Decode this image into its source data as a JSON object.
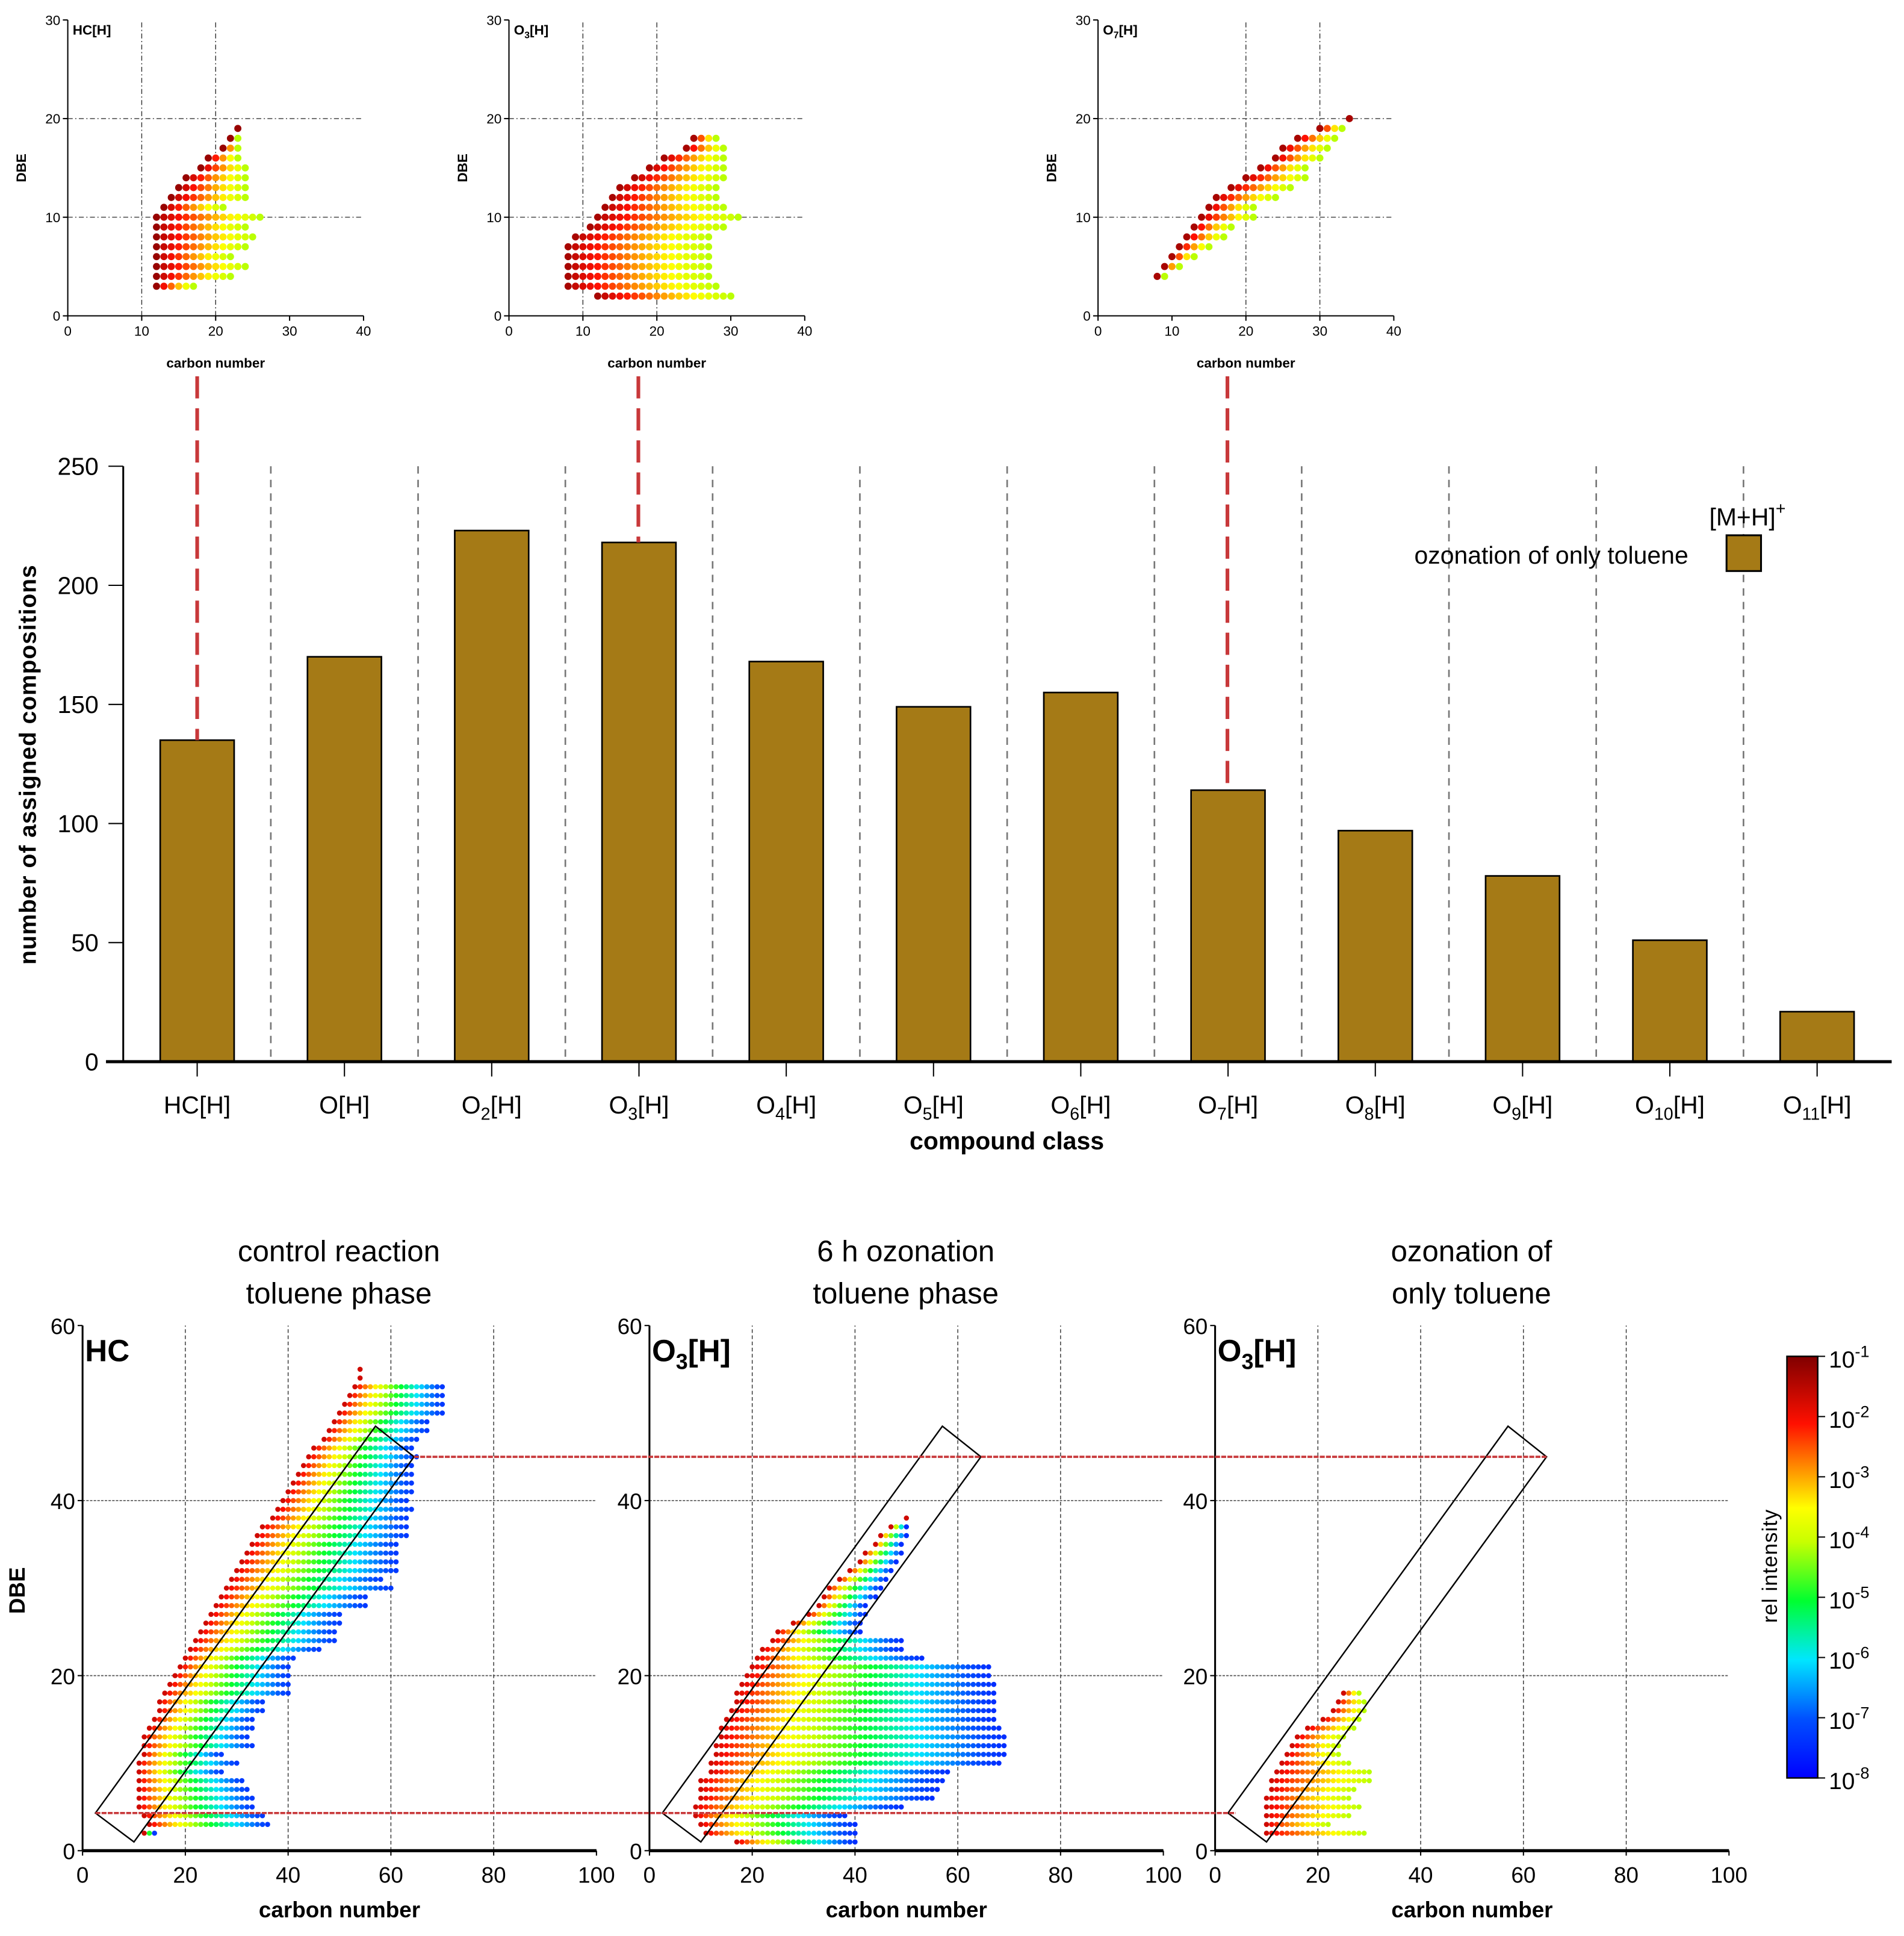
{
  "colors": {
    "bar": "#a57a16",
    "link": "#c8383a",
    "sep": "#777777"
  },
  "chart_data": [
    {
      "type": "scatter",
      "panel": "top-1",
      "title": "HC[H]",
      "xlabel": "carbon number",
      "ylabel": "DBE",
      "xlim": [
        0,
        40
      ],
      "ylim": [
        0,
        30
      ],
      "xticks": [
        0,
        10,
        20,
        30,
        40
      ],
      "yticks": [
        0,
        10,
        20,
        30
      ],
      "grid_x": [
        10,
        20
      ],
      "grid_y": [
        10,
        20
      ],
      "color_range": [
        0.97,
        0.55
      ],
      "rows": [
        [
          3,
          12,
          17
        ],
        [
          4,
          12,
          22
        ],
        [
          5,
          12,
          24
        ],
        [
          6,
          12,
          22
        ],
        [
          7,
          12,
          24
        ],
        [
          8,
          12,
          25
        ],
        [
          9,
          12,
          24
        ],
        [
          10,
          12,
          26
        ],
        [
          11,
          13,
          21
        ],
        [
          12,
          14,
          24
        ],
        [
          13,
          15,
          24
        ],
        [
          14,
          16,
          24
        ],
        [
          15,
          18,
          24
        ],
        [
          16,
          19,
          23
        ],
        [
          17,
          21,
          23
        ],
        [
          18,
          22,
          23
        ],
        [
          19,
          23,
          23
        ]
      ]
    },
    {
      "type": "scatter",
      "panel": "top-2",
      "title": "O3[H]",
      "xlabel": "carbon number",
      "ylabel": "DBE",
      "xlim": [
        0,
        40
      ],
      "ylim": [
        0,
        30
      ],
      "xticks": [
        0,
        10,
        20,
        30,
        40
      ],
      "yticks": [
        0,
        10,
        20,
        30
      ],
      "grid_x": [
        10,
        20
      ],
      "grid_y": [
        10,
        20
      ],
      "color_range": [
        0.95,
        0.55
      ],
      "rows": [
        [
          2,
          12,
          30
        ],
        [
          3,
          8,
          28
        ],
        [
          4,
          8,
          27
        ],
        [
          5,
          8,
          27
        ],
        [
          6,
          8,
          27
        ],
        [
          7,
          8,
          27
        ],
        [
          8,
          9,
          27
        ],
        [
          9,
          11,
          29
        ],
        [
          10,
          12,
          31
        ],
        [
          11,
          13,
          29
        ],
        [
          12,
          14,
          28
        ],
        [
          13,
          15,
          28
        ],
        [
          14,
          17,
          29
        ],
        [
          15,
          19,
          29
        ],
        [
          16,
          21,
          29
        ],
        [
          17,
          24,
          29
        ],
        [
          18,
          25,
          28
        ]
      ]
    },
    {
      "type": "scatter",
      "panel": "top-3",
      "title": "O7[H]",
      "xlabel": "carbon number",
      "ylabel": "DBE",
      "xlim": [
        0,
        40
      ],
      "ylim": [
        0,
        30
      ],
      "xticks": [
        0,
        10,
        20,
        30,
        40
      ],
      "yticks": [
        0,
        10,
        20,
        30
      ],
      "grid_x": [
        20,
        30
      ],
      "grid_y": [
        10,
        20
      ],
      "color_range": [
        0.95,
        0.55
      ],
      "rows": [
        [
          4,
          8,
          9
        ],
        [
          5,
          9,
          11
        ],
        [
          6,
          10,
          13
        ],
        [
          7,
          11,
          15
        ],
        [
          8,
          12,
          17
        ],
        [
          9,
          13,
          18
        ],
        [
          10,
          14,
          21
        ],
        [
          11,
          15,
          21
        ],
        [
          12,
          16,
          24
        ],
        [
          13,
          18,
          26
        ],
        [
          14,
          20,
          28
        ],
        [
          15,
          22,
          28
        ],
        [
          16,
          24,
          30
        ],
        [
          17,
          25,
          31
        ],
        [
          18,
          27,
          32
        ],
        [
          19,
          30,
          33
        ],
        [
          20,
          34,
          34
        ]
      ]
    },
    {
      "type": "bar",
      "categories": [
        "HC[H]",
        "O[H]",
        "O2[H]",
        "O3[H]",
        "O4[H]",
        "O5[H]",
        "O6[H]",
        "O7[H]",
        "O8[H]",
        "O9[H]",
        "O10[H]",
        "O11[H]"
      ],
      "values": [
        135,
        170,
        223,
        218,
        168,
        149,
        155,
        114,
        97,
        78,
        51,
        21
      ],
      "xlabel": "compound class",
      "ylabel": "number of assigned compositions",
      "ylim": [
        0,
        250
      ],
      "yticks": [
        0,
        50,
        100,
        150,
        200,
        250
      ],
      "legend": {
        "title": "[M+H]+",
        "entry": "ozonation of only toluene",
        "placement": "top-right"
      },
      "linked_categories": [
        "HC[H]",
        "O3[H]",
        "O7[H]"
      ]
    },
    {
      "type": "scatter",
      "panel": "bottom-1",
      "title": "control reaction",
      "subtitle": "toluene phase",
      "label": "HC",
      "xlabel": "carbon number",
      "ylabel": "DBE",
      "xlim": [
        0,
        100
      ],
      "ylim": [
        0,
        60
      ],
      "xticks": [
        0,
        20,
        40,
        60,
        80,
        100
      ],
      "yticks": [
        0,
        20,
        40,
        60
      ],
      "color_range": [
        0.9,
        0.1
      ],
      "rows": [
        [
          2,
          12,
          14
        ],
        [
          3,
          13,
          36
        ],
        [
          4,
          12,
          35
        ],
        [
          5,
          11,
          33
        ],
        [
          6,
          11,
          33
        ],
        [
          7,
          11,
          32
        ],
        [
          8,
          11,
          31
        ],
        [
          9,
          11,
          27
        ],
        [
          10,
          11,
          30
        ],
        [
          11,
          12,
          27
        ],
        [
          12,
          12,
          33
        ],
        [
          13,
          12,
          32
        ],
        [
          14,
          13,
          33
        ],
        [
          15,
          14,
          33
        ],
        [
          16,
          15,
          35
        ],
        [
          17,
          15,
          35
        ],
        [
          18,
          16,
          40
        ],
        [
          19,
          17,
          40
        ],
        [
          20,
          18,
          40
        ],
        [
          21,
          19,
          40
        ],
        [
          22,
          20,
          41
        ],
        [
          23,
          21,
          46
        ],
        [
          24,
          22,
          49
        ],
        [
          25,
          23,
          49
        ],
        [
          26,
          24,
          50
        ],
        [
          27,
          25,
          50
        ],
        [
          28,
          26,
          55
        ],
        [
          29,
          27,
          55
        ],
        [
          30,
          28,
          60
        ],
        [
          31,
          29,
          58
        ],
        [
          32,
          30,
          61
        ],
        [
          33,
          31,
          61
        ],
        [
          34,
          32,
          61
        ],
        [
          35,
          33,
          61
        ],
        [
          36,
          34,
          63
        ],
        [
          37,
          35,
          63
        ],
        [
          38,
          37,
          63
        ],
        [
          39,
          38,
          64
        ],
        [
          40,
          39,
          63
        ],
        [
          41,
          40,
          64
        ],
        [
          42,
          41,
          64
        ],
        [
          43,
          42,
          64
        ],
        [
          44,
          43,
          64
        ],
        [
          45,
          44,
          65
        ],
        [
          46,
          45,
          64
        ],
        [
          47,
          47,
          65
        ],
        [
          48,
          48,
          67
        ],
        [
          49,
          49,
          67
        ],
        [
          50,
          50,
          70
        ],
        [
          51,
          51,
          70
        ],
        [
          52,
          52,
          70
        ],
        [
          53,
          53,
          70
        ],
        [
          54,
          54,
          54
        ],
        [
          55,
          54,
          54
        ]
      ]
    },
    {
      "type": "scatter",
      "panel": "bottom-2",
      "title": "6 h ozonation",
      "subtitle": "toluene phase",
      "label": "O3[H]",
      "xlabel": "carbon number",
      "ylabel": "DBE",
      "xlim": [
        0,
        100
      ],
      "ylim": [
        0,
        60
      ],
      "xticks": [
        0,
        20,
        40,
        60,
        80,
        100
      ],
      "yticks": [
        0,
        20,
        40,
        60
      ],
      "color_range": [
        0.9,
        0.08
      ],
      "rows": [
        [
          1,
          17,
          40
        ],
        [
          2,
          11,
          40
        ],
        [
          3,
          10,
          40
        ],
        [
          4,
          9,
          38
        ],
        [
          5,
          9,
          49
        ],
        [
          6,
          10,
          55
        ],
        [
          7,
          10,
          56
        ],
        [
          8,
          10,
          57
        ],
        [
          9,
          12,
          58
        ],
        [
          10,
          12,
          68
        ],
        [
          11,
          13,
          69
        ],
        [
          12,
          13,
          69
        ],
        [
          13,
          14,
          69
        ],
        [
          14,
          14,
          68
        ],
        [
          15,
          15,
          67
        ],
        [
          16,
          16,
          67
        ],
        [
          17,
          17,
          67
        ],
        [
          18,
          17,
          67
        ],
        [
          19,
          18,
          67
        ],
        [
          20,
          19,
          66
        ],
        [
          21,
          20,
          66
        ],
        [
          22,
          21,
          53
        ],
        [
          23,
          22,
          49
        ],
        [
          24,
          24,
          49
        ],
        [
          25,
          25,
          41
        ],
        [
          26,
          28,
          41
        ],
        [
          27,
          31,
          42
        ],
        [
          28,
          33,
          42
        ],
        [
          29,
          34,
          44
        ],
        [
          30,
          35,
          45
        ],
        [
          31,
          37,
          46
        ],
        [
          32,
          39,
          47
        ],
        [
          33,
          41,
          48
        ],
        [
          34,
          42,
          49
        ],
        [
          35,
          44,
          49
        ],
        [
          36,
          45,
          50
        ],
        [
          37,
          47,
          50
        ],
        [
          38,
          50,
          50
        ]
      ]
    },
    {
      "type": "scatter",
      "panel": "bottom-3",
      "title": "ozonation of",
      "subtitle": "only toluene",
      "label": "O3[H]",
      "xlabel": "carbon number",
      "ylabel": "DBE",
      "xlim": [
        0,
        100
      ],
      "ylim": [
        0,
        60
      ],
      "xticks": [
        0,
        20,
        40,
        60,
        80,
        100
      ],
      "yticks": [
        0,
        20,
        40,
        60
      ],
      "color_range": [
        0.9,
        0.55
      ],
      "rows": [
        [
          2,
          10,
          29
        ],
        [
          3,
          10,
          22
        ],
        [
          4,
          10,
          26
        ],
        [
          5,
          10,
          28
        ],
        [
          6,
          10,
          26
        ],
        [
          7,
          11,
          27
        ],
        [
          8,
          11,
          30
        ],
        [
          9,
          12,
          30
        ],
        [
          10,
          13,
          26
        ],
        [
          11,
          14,
          24
        ],
        [
          12,
          15,
          24
        ],
        [
          13,
          16,
          25
        ],
        [
          14,
          18,
          27
        ],
        [
          15,
          21,
          28
        ],
        [
          16,
          23,
          29
        ],
        [
          17,
          24,
          29
        ],
        [
          18,
          25,
          28
        ]
      ]
    },
    {
      "type": "colorbar",
      "label": "rel intensity",
      "scale": "log",
      "ticks": [
        "10^-1",
        "10^-2",
        "10^-3",
        "10^-4",
        "10^-5",
        "10^-6",
        "10^-7",
        "10^-8"
      ]
    }
  ],
  "annotations": {
    "window_box": [
      [
        2.5,
        4.3
      ],
      [
        10,
        1
      ],
      [
        64.5,
        45
      ],
      [
        57,
        48.5
      ]
    ],
    "reference_dbe_lines": [
      45,
      4.3
    ]
  }
}
